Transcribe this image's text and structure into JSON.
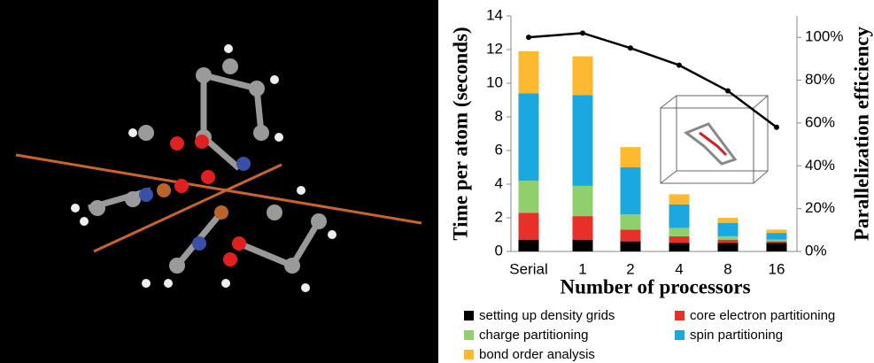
{
  "chart_data": {
    "type": "bar",
    "stacked": true,
    "categories": [
      "Serial",
      "1",
      "2",
      "4",
      "8",
      "16"
    ],
    "series": [
      {
        "name": "setting up density grids",
        "color": "#000000",
        "values": [
          0.7,
          0.7,
          0.6,
          0.5,
          0.5,
          0.5
        ]
      },
      {
        "name": "core electron partitioning",
        "color": "#e8302a",
        "values": [
          1.6,
          1.4,
          0.7,
          0.4,
          0.2,
          0.1
        ]
      },
      {
        "name": "charge partitioning",
        "color": "#8fd06c",
        "values": [
          1.9,
          1.8,
          0.9,
          0.5,
          0.2,
          0.1
        ]
      },
      {
        "name": "spin partitioning",
        "color": "#1ba8e0",
        "values": [
          5.2,
          5.4,
          2.8,
          1.4,
          0.8,
          0.4
        ]
      },
      {
        "name": "bond order analysis",
        "color": "#fdb92f",
        "values": [
          2.5,
          2.3,
          1.2,
          0.6,
          0.3,
          0.2
        ]
      }
    ],
    "efficiency": {
      "type": "line",
      "axis": "y2",
      "color": "#000000",
      "values": [
        100,
        102,
        95,
        87,
        75,
        58
      ]
    },
    "xlabel": "Number of processors",
    "ylabel": "Time per atom (seconds)",
    "y2label": "Parallelization efficiency",
    "ylim": [
      0,
      14
    ],
    "yticks": [
      0,
      2,
      4,
      6,
      8,
      10,
      12,
      14
    ],
    "y2lim": [
      0,
      110
    ],
    "y2ticks": [
      {
        "value": 0,
        "label": "0%"
      },
      {
        "value": 20,
        "label": "20%"
      },
      {
        "value": 40,
        "label": "40%"
      },
      {
        "value": 60,
        "label": "60%"
      },
      {
        "value": 80,
        "label": "80%"
      },
      {
        "value": 100,
        "label": "100%"
      }
    ],
    "grid": false
  }
}
